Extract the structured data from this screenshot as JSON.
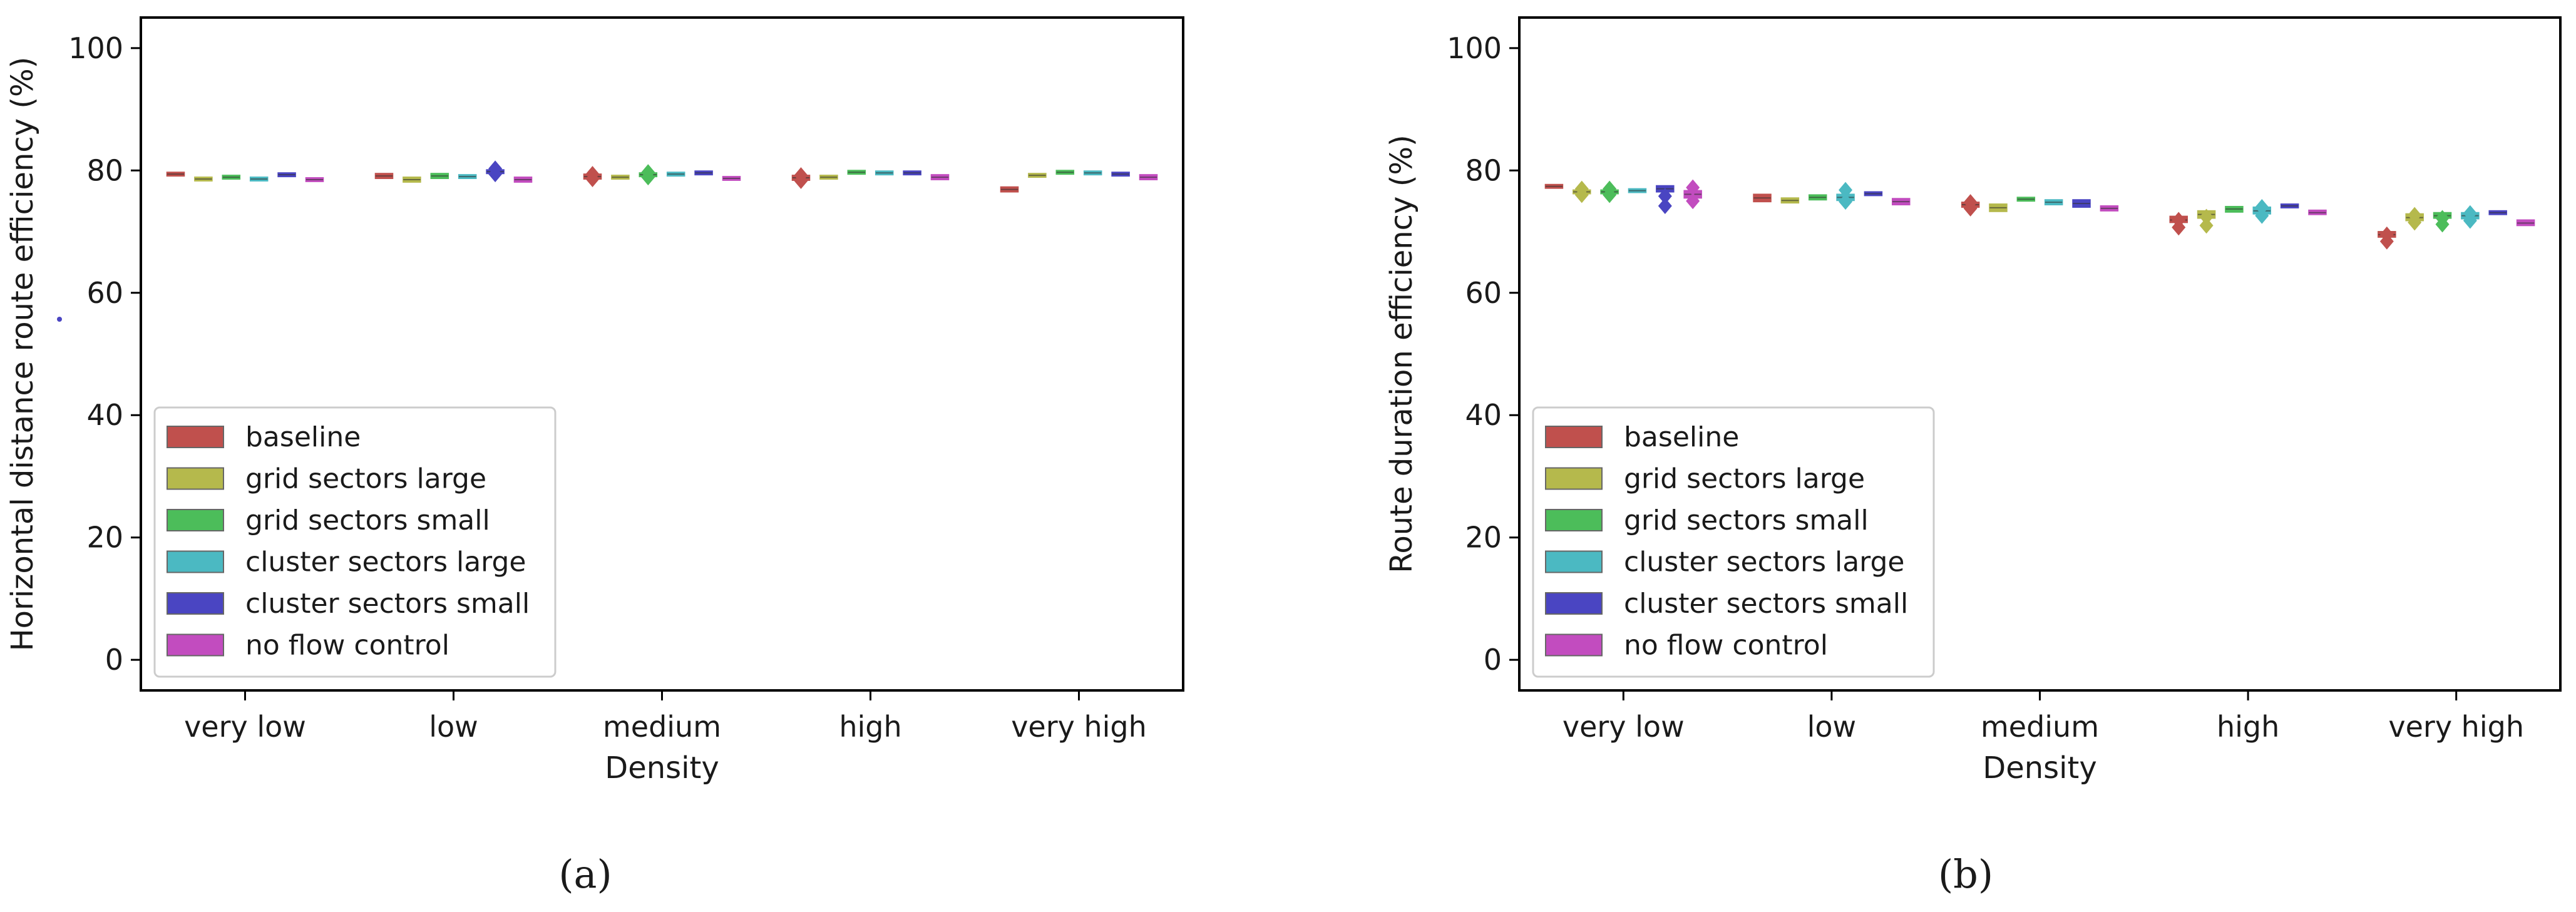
{
  "chart_data": [
    {
      "type": "boxplot",
      "caption": "(a)",
      "title": "",
      "xlabel": "Density",
      "ylabel": "Horizontal distance route efficiency (%)",
      "ylim": [
        -5,
        105
      ],
      "yticks": [
        0,
        20,
        40,
        60,
        80,
        100
      ],
      "categories": [
        "very low",
        "low",
        "medium",
        "high",
        "very high"
      ],
      "legend_location": "lower-left",
      "series": [
        {
          "name": "baseline",
          "color": "#c0504d",
          "values": [
            {
              "median": 79.4,
              "q1": 79.1,
              "q3": 79.7,
              "outliers": []
            },
            {
              "median": 79.1,
              "q1": 78.7,
              "q3": 79.5,
              "outliers": []
            },
            {
              "median": 79.0,
              "q1": 78.6,
              "q3": 79.4,
              "outliers": [
                78.6,
                79.4
              ]
            },
            {
              "median": 78.8,
              "q1": 78.4,
              "q3": 79.2,
              "outliers": [
                78.3,
                79.2
              ]
            },
            {
              "median": 76.9,
              "q1": 76.5,
              "q3": 77.3,
              "outliers": []
            }
          ]
        },
        {
          "name": "grid sectors large",
          "color": "#b5b94c",
          "values": [
            {
              "median": 78.6,
              "q1": 78.3,
              "q3": 78.9,
              "outliers": []
            },
            {
              "median": 78.5,
              "q1": 78.1,
              "q3": 78.9,
              "outliers": []
            },
            {
              "median": 78.9,
              "q1": 78.6,
              "q3": 79.2,
              "outliers": []
            },
            {
              "median": 78.9,
              "q1": 78.6,
              "q3": 79.2,
              "outliers": []
            },
            {
              "median": 79.2,
              "q1": 78.9,
              "q3": 79.5,
              "outliers": []
            }
          ]
        },
        {
          "name": "grid sectors small",
          "color": "#4cbd5a",
          "values": [
            {
              "median": 78.9,
              "q1": 78.6,
              "q3": 79.2,
              "outliers": []
            },
            {
              "median": 79.1,
              "q1": 78.7,
              "q3": 79.5,
              "outliers": []
            },
            {
              "median": 79.3,
              "q1": 79.0,
              "q3": 79.6,
              "outliers": [
                78.9,
                79.7
              ]
            },
            {
              "median": 79.7,
              "q1": 79.4,
              "q3": 80.0,
              "outliers": []
            },
            {
              "median": 79.7,
              "q1": 79.4,
              "q3": 80.0,
              "outliers": []
            }
          ]
        },
        {
          "name": "cluster sectors large",
          "color": "#4bb9c2",
          "values": [
            {
              "median": 78.6,
              "q1": 78.3,
              "q3": 78.9,
              "outliers": []
            },
            {
              "median": 79.0,
              "q1": 78.7,
              "q3": 79.3,
              "outliers": []
            },
            {
              "median": 79.4,
              "q1": 79.1,
              "q3": 79.7,
              "outliers": []
            },
            {
              "median": 79.6,
              "q1": 79.3,
              "q3": 79.9,
              "outliers": []
            },
            {
              "median": 79.6,
              "q1": 79.3,
              "q3": 79.9,
              "outliers": []
            }
          ]
        },
        {
          "name": "cluster sectors small",
          "color": "#4a45c2",
          "values": [
            {
              "median": 79.3,
              "q1": 79.0,
              "q3": 79.6,
              "outliers": []
            },
            {
              "median": 79.8,
              "q1": 79.5,
              "q3": 80.1,
              "outliers": [
                79.4,
                80.3
              ]
            },
            {
              "median": 79.6,
              "q1": 79.3,
              "q3": 79.9,
              "outliers": []
            },
            {
              "median": 79.6,
              "q1": 79.3,
              "q3": 79.9,
              "outliers": []
            },
            {
              "median": 79.4,
              "q1": 79.1,
              "q3": 79.7,
              "outliers": []
            }
          ]
        },
        {
          "name": "no flow control",
          "color": "#c24cbf",
          "values": [
            {
              "median": 78.5,
              "q1": 78.2,
              "q3": 78.8,
              "outliers": []
            },
            {
              "median": 78.5,
              "q1": 78.1,
              "q3": 78.9,
              "outliers": []
            },
            {
              "median": 78.7,
              "q1": 78.4,
              "q3": 79.0,
              "outliers": []
            },
            {
              "median": 78.9,
              "q1": 78.5,
              "q3": 79.3,
              "outliers": []
            },
            {
              "median": 78.9,
              "q1": 78.5,
              "q3": 79.3,
              "outliers": []
            }
          ]
        }
      ]
    },
    {
      "type": "boxplot",
      "caption": "(b)",
      "title": "",
      "xlabel": "Density",
      "ylabel": "Route duration efficiency (%)",
      "ylim": [
        -5,
        105
      ],
      "yticks": [
        0,
        20,
        40,
        60,
        80,
        100
      ],
      "categories": [
        "very low",
        "low",
        "medium",
        "high",
        "very high"
      ],
      "legend_location": "lower-left",
      "series": [
        {
          "name": "baseline",
          "color": "#c0504d",
          "values": [
            {
              "median": 77.4,
              "q1": 77.1,
              "q3": 77.7,
              "outliers": []
            },
            {
              "median": 75.5,
              "q1": 74.9,
              "q3": 76.1,
              "outliers": []
            },
            {
              "median": 74.4,
              "q1": 74.0,
              "q3": 74.8,
              "outliers": [
                73.8,
                74.8
              ]
            },
            {
              "median": 71.9,
              "q1": 71.5,
              "q3": 72.5,
              "outliers": [
                70.7,
                71.9
              ]
            },
            {
              "median": 69.5,
              "q1": 69.1,
              "q3": 70.0,
              "outliers": [
                68.4,
                69.5
              ]
            }
          ]
        },
        {
          "name": "grid sectors large",
          "color": "#b5b94c",
          "values": [
            {
              "median": 76.5,
              "q1": 76.2,
              "q3": 76.8,
              "outliers": [
                76.0,
                77.0
              ]
            },
            {
              "median": 75.1,
              "q1": 74.7,
              "q3": 75.5,
              "outliers": []
            },
            {
              "median": 73.9,
              "q1": 73.3,
              "q3": 74.5,
              "outliers": []
            },
            {
              "median": 72.8,
              "q1": 72.2,
              "q3": 73.4,
              "outliers": [
                71.0,
                72.4
              ]
            },
            {
              "median": 72.3,
              "q1": 71.8,
              "q3": 72.9,
              "outliers": [
                71.5,
                72.7
              ]
            }
          ]
        },
        {
          "name": "grid sectors small",
          "color": "#4cbd5a",
          "values": [
            {
              "median": 76.5,
              "q1": 76.2,
              "q3": 76.8,
              "outliers": [
                76.0,
                77.0
              ]
            },
            {
              "median": 75.6,
              "q1": 75.2,
              "q3": 76.0,
              "outliers": []
            },
            {
              "median": 75.3,
              "q1": 75.0,
              "q3": 75.6,
              "outliers": []
            },
            {
              "median": 73.7,
              "q1": 73.2,
              "q3": 74.1,
              "outliers": []
            },
            {
              "median": 72.6,
              "q1": 72.2,
              "q3": 73.1,
              "outliers": [
                71.2,
                72.2
              ]
            }
          ]
        },
        {
          "name": "cluster sectors large",
          "color": "#4bb9c2",
          "values": [
            {
              "median": 76.7,
              "q1": 76.4,
              "q3": 77.0,
              "outliers": []
            },
            {
              "median": 75.6,
              "q1": 75.1,
              "q3": 76.1,
              "outliers": [
                74.9,
                76.8
              ]
            },
            {
              "median": 74.8,
              "q1": 74.4,
              "q3": 75.2,
              "outliers": []
            },
            {
              "median": 73.4,
              "q1": 72.9,
              "q3": 74.0,
              "outliers": [
                72.6,
                74.0
              ]
            },
            {
              "median": 72.6,
              "q1": 72.1,
              "q3": 73.1,
              "outliers": [
                71.8,
                73.0
              ]
            }
          ]
        },
        {
          "name": "cluster sectors small",
          "color": "#4a45c2",
          "values": [
            {
              "median": 77.0,
              "q1": 76.5,
              "q3": 77.5,
              "outliers": [
                74.2,
                75.8
              ]
            },
            {
              "median": 76.2,
              "q1": 75.9,
              "q3": 76.5,
              "outliers": []
            },
            {
              "median": 74.6,
              "q1": 74.0,
              "q3": 75.2,
              "outliers": []
            },
            {
              "median": 74.2,
              "q1": 73.9,
              "q3": 74.5,
              "outliers": []
            },
            {
              "median": 73.1,
              "q1": 72.8,
              "q3": 73.4,
              "outliers": []
            }
          ]
        },
        {
          "name": "no flow control",
          "color": "#c24cbf",
          "values": [
            {
              "median": 76.1,
              "q1": 75.5,
              "q3": 76.7,
              "outliers": [
                75.0,
                77.2
              ]
            },
            {
              "median": 74.9,
              "q1": 74.4,
              "q3": 75.4,
              "outliers": []
            },
            {
              "median": 73.8,
              "q1": 73.4,
              "q3": 74.2,
              "outliers": []
            },
            {
              "median": 73.1,
              "q1": 72.8,
              "q3": 73.5,
              "outliers": []
            },
            {
              "median": 71.4,
              "q1": 71.0,
              "q3": 71.9,
              "outliers": []
            }
          ]
        }
      ]
    }
  ]
}
